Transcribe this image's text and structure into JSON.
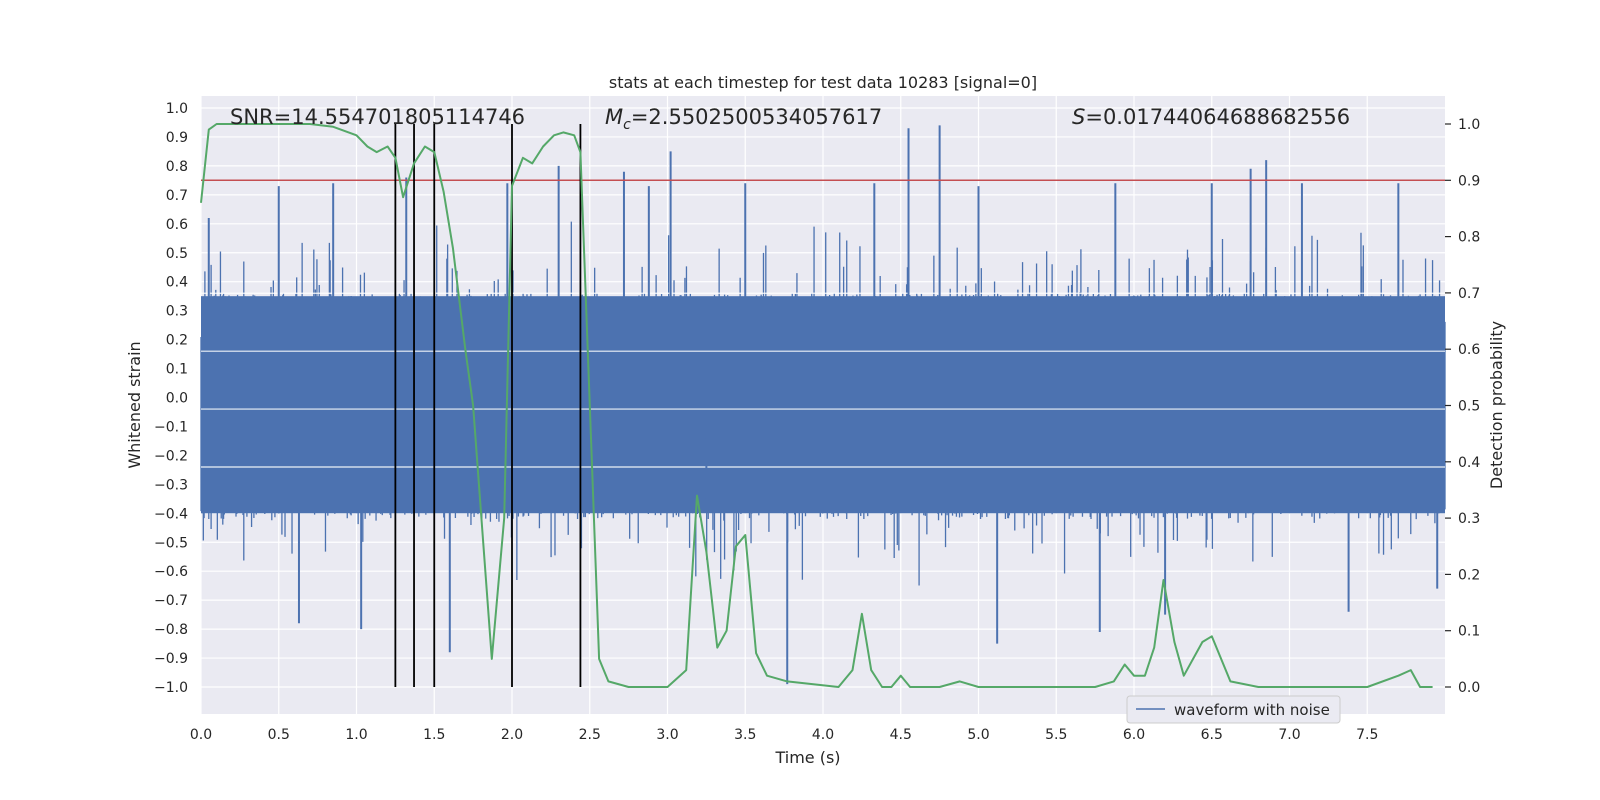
{
  "chart_data": {
    "type": "line",
    "title": "stats at each timestep for test data 10283 [signal=0]",
    "xlabel": "Time (s)",
    "ylabel": "Whitened strain",
    "y2label": "Detection probability",
    "xlim": [
      0,
      8
    ],
    "ylim": [
      -1.1,
      1.05
    ],
    "y2lim": [
      -0.05,
      1.03
    ],
    "xticks": [
      0.0,
      0.5,
      1.0,
      1.5,
      2.0,
      2.5,
      3.0,
      3.5,
      4.0,
      4.5,
      5.0,
      5.5,
      6.0,
      6.5,
      7.0,
      7.5
    ],
    "xtick_labels": [
      "0.0",
      "0.5",
      "1.0",
      "1.5",
      "2.0",
      "2.5",
      "3.0",
      "3.5",
      "4.0",
      "4.5",
      "5.0",
      "5.5",
      "6.0",
      "6.5",
      "7.0",
      "7.5"
    ],
    "yticks": [
      1.0,
      0.9,
      0.8,
      0.7,
      0.6,
      0.5,
      0.4,
      0.3,
      0.2,
      0.1,
      0.0,
      -0.1,
      -0.2,
      -0.3,
      -0.4,
      -0.5,
      -0.6,
      -0.7,
      -0.8,
      -0.9,
      -1.0
    ],
    "ytick_labels": [
      "1.0",
      "0.9",
      "0.8",
      "0.7",
      "0.6",
      "0.5",
      "0.4",
      "0.3",
      "0.2",
      "0.1",
      "0.0",
      "−0.1",
      "−0.2",
      "−0.3",
      "−0.4",
      "−0.5",
      "−0.6",
      "−0.7",
      "−0.8",
      "−0.9",
      "−1.0"
    ],
    "y2ticks": [
      1.0,
      0.9,
      0.8,
      0.7,
      0.6,
      0.5,
      0.4,
      0.3,
      0.2,
      0.1,
      0.0
    ],
    "y2tick_labels": [
      "1.0",
      "0.9",
      "0.8",
      "0.7",
      "0.6",
      "0.5",
      "0.4",
      "0.3",
      "0.2",
      "0.1",
      "0.0"
    ],
    "annotations": {
      "snr": "SNR=14.554701805114746",
      "mc_symbol": "M",
      "mc_sub": "c",
      "mc_value": "=2.5502500534057617",
      "s_symbol": "S",
      "s_value": "=0.01744064688682556"
    },
    "threshold": {
      "value": 0.9,
      "axis": "y2",
      "color": "#c44e52"
    },
    "vertical_markers": [
      1.25,
      1.37,
      1.5,
      2.0,
      2.44
    ],
    "waveform": {
      "name": "waveform with noise",
      "color": "#4c72b0",
      "sample_count": 1600,
      "typical_range": [
        -0.42,
        0.36
      ],
      "note": "dense noise, individual samples not recoverable",
      "peaks": [
        {
          "x": 0.05,
          "y": 0.62
        },
        {
          "x": 0.5,
          "y": 0.73
        },
        {
          "x": 0.63,
          "y": -0.78
        },
        {
          "x": 0.85,
          "y": 0.74
        },
        {
          "x": 1.03,
          "y": -0.8
        },
        {
          "x": 1.32,
          "y": 0.76
        },
        {
          "x": 1.6,
          "y": -0.88
        },
        {
          "x": 1.97,
          "y": 0.74
        },
        {
          "x": 2.3,
          "y": 0.8
        },
        {
          "x": 2.72,
          "y": 0.78
        },
        {
          "x": 2.88,
          "y": 0.73
        },
        {
          "x": 3.02,
          "y": 0.85
        },
        {
          "x": 3.25,
          "y": -0.14
        },
        {
          "x": 3.5,
          "y": 0.74
        },
        {
          "x": 3.77,
          "y": -0.99
        },
        {
          "x": 4.33,
          "y": 0.74
        },
        {
          "x": 4.55,
          "y": 0.93
        },
        {
          "x": 4.75,
          "y": 0.94
        },
        {
          "x": 5.12,
          "y": -0.85
        },
        {
          "x": 5.0,
          "y": 0.73
        },
        {
          "x": 5.78,
          "y": -0.81
        },
        {
          "x": 5.88,
          "y": 0.74
        },
        {
          "x": 6.2,
          "y": -0.75
        },
        {
          "x": 6.5,
          "y": 0.74
        },
        {
          "x": 6.75,
          "y": 0.79
        },
        {
          "x": 6.85,
          "y": 0.82
        },
        {
          "x": 7.08,
          "y": 0.74
        },
        {
          "x": 7.38,
          "y": -0.74
        },
        {
          "x": 7.7,
          "y": 0.74
        },
        {
          "x": 7.95,
          "y": -0.66
        }
      ]
    },
    "probability": {
      "name": "detection probability",
      "color": "#55a868",
      "x": [
        0,
        0.05,
        0.1,
        0.2,
        0.4,
        0.7,
        0.85,
        1.0,
        1.07,
        1.13,
        1.2,
        1.25,
        1.3,
        1.37,
        1.44,
        1.5,
        1.56,
        1.62,
        1.7,
        1.75,
        1.87,
        1.95,
        2.0,
        2.07,
        2.13,
        2.2,
        2.27,
        2.33,
        2.4,
        2.44,
        2.5,
        2.56,
        2.62,
        2.75,
        3.0,
        3.12,
        3.19,
        3.25,
        3.32,
        3.38,
        3.44,
        3.5,
        3.57,
        3.64,
        3.77,
        4.1,
        4.19,
        4.25,
        4.31,
        4.38,
        4.44,
        4.5,
        4.56,
        4.62,
        4.75,
        4.88,
        5.0,
        5.25,
        5.5,
        5.75,
        5.87,
        5.94,
        6.0,
        6.07,
        6.13,
        6.19,
        6.26,
        6.32,
        6.44,
        6.5,
        6.62,
        6.8,
        7.0,
        7.25,
        7.5,
        7.7,
        7.78,
        7.84,
        7.92
      ],
      "y": [
        0.86,
        0.99,
        1.0,
        1.0,
        1.0,
        1.0,
        0.995,
        0.98,
        0.96,
        0.95,
        0.96,
        0.94,
        0.87,
        0.93,
        0.96,
        0.95,
        0.88,
        0.78,
        0.6,
        0.5,
        0.05,
        0.3,
        0.89,
        0.94,
        0.93,
        0.96,
        0.98,
        0.985,
        0.98,
        0.95,
        0.5,
        0.05,
        0.01,
        0.0,
        0.0,
        0.03,
        0.34,
        0.24,
        0.07,
        0.1,
        0.25,
        0.27,
        0.06,
        0.02,
        0.01,
        0.0,
        0.03,
        0.13,
        0.03,
        0.0,
        0.0,
        0.02,
        0.0,
        0.0,
        0.0,
        0.01,
        0.0,
        0.0,
        0.0,
        0.0,
        0.01,
        0.04,
        0.02,
        0.02,
        0.07,
        0.19,
        0.08,
        0.02,
        0.08,
        0.09,
        0.01,
        0.0,
        0.0,
        0.0,
        0.0,
        0.02,
        0.03,
        0.0,
        0.0
      ]
    },
    "legend": {
      "entries": [
        "waveform with noise"
      ],
      "placement": "lower-right"
    },
    "grid": true
  }
}
